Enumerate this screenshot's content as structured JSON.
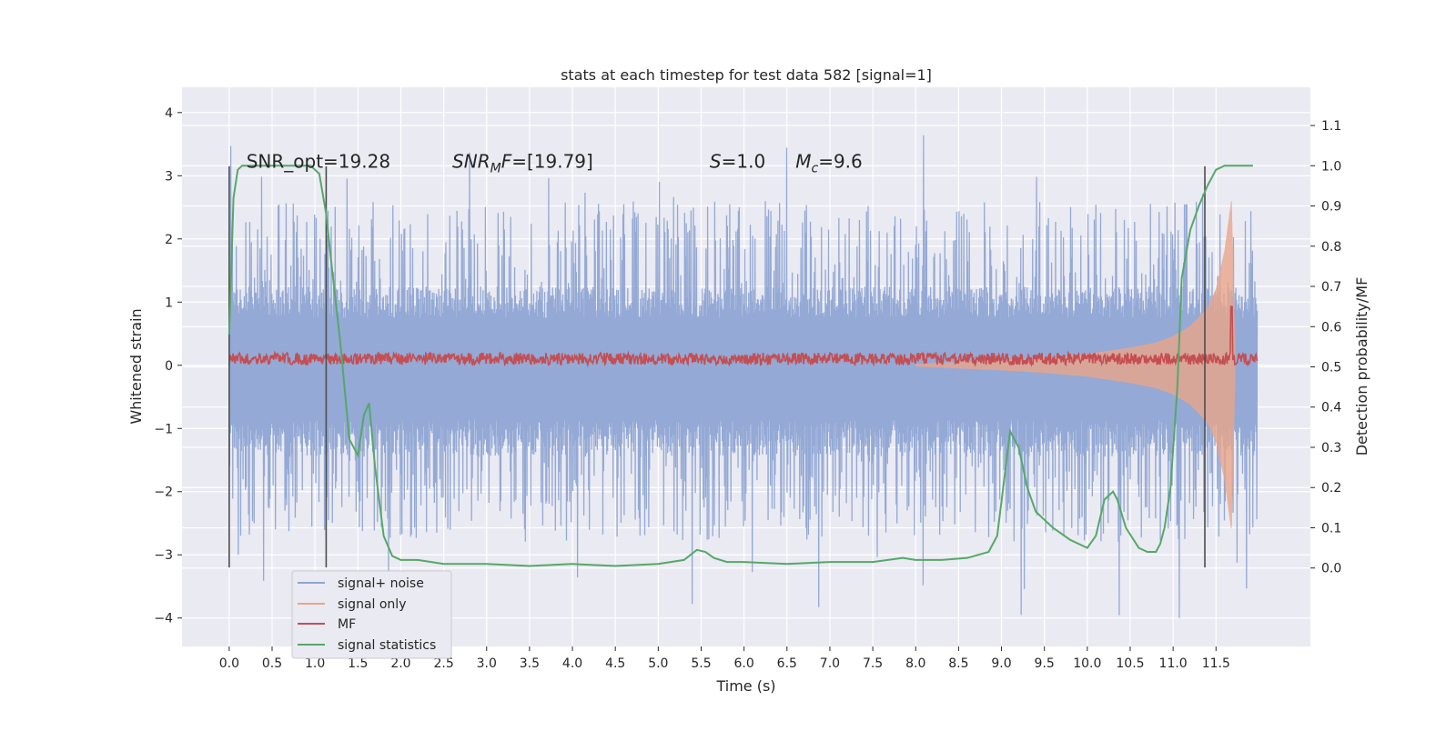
{
  "chart_data": {
    "type": "line",
    "title": "stats at each timestep for test data 582 [signal=1]",
    "xlabel": "Time (s)",
    "ylabel": "Whitened strain",
    "y2label": "Detection probability/MF",
    "xlim": [
      -0.55,
      12.6
    ],
    "ylim": [
      -4.45,
      4.4
    ],
    "y2lim": [
      -0.195,
      1.195
    ],
    "x_ticks": [
      0.0,
      0.5,
      1.0,
      1.5,
      2.0,
      2.5,
      3.0,
      3.5,
      4.0,
      4.5,
      5.0,
      5.5,
      6.0,
      6.5,
      7.0,
      7.5,
      8.0,
      8.5,
      9.0,
      9.5,
      10.0,
      10.5,
      11.0,
      11.5
    ],
    "x_tick_labels": [
      "0.0",
      "0.5",
      "1.0",
      "1.5",
      "2.0",
      "2.5",
      "3.0",
      "3.5",
      "4.0",
      "4.5",
      "5.0",
      "5.5",
      "6.0",
      "6.5",
      "7.0",
      "7.5",
      "8.0",
      "8.5",
      "9.0",
      "9.5",
      "10.0",
      "10.5",
      "11.0",
      "11.5"
    ],
    "y_ticks": [
      -4,
      -3,
      -2,
      -1,
      0,
      1,
      2,
      3,
      4
    ],
    "y_tick_labels": [
      "−4",
      "−3",
      "−2",
      "−1",
      "0",
      "1",
      "2",
      "3",
      "4"
    ],
    "y2_ticks": [
      0.0,
      0.1,
      0.2,
      0.3,
      0.4,
      0.5,
      0.6,
      0.7,
      0.8,
      0.9,
      1.0,
      1.1
    ],
    "y2_tick_labels": [
      "0.0",
      "0.1",
      "0.2",
      "0.3",
      "0.4",
      "0.5",
      "0.6",
      "0.7",
      "0.8",
      "0.9",
      "1.0",
      "1.1"
    ],
    "grid": true,
    "legend_position": "lower-left",
    "annotations": [
      {
        "parts": [
          {
            "t": "SNR_opt=19.28",
            "i": false
          }
        ],
        "x": 0.2,
        "y": 3.1
      },
      {
        "parts": [
          {
            "t": "SNR",
            "i": true
          },
          {
            "t": "M",
            "i": true,
            "sub": true
          },
          {
            "t": "F",
            "i": true
          },
          {
            "t": "=[19.79]",
            "i": false
          }
        ],
        "x": 2.6,
        "y": 3.1
      },
      {
        "parts": [
          {
            "t": "S",
            "i": true
          },
          {
            "t": "=1.0",
            "i": false
          }
        ],
        "x": 5.6,
        "y": 3.1
      },
      {
        "parts": [
          {
            "t": "M",
            "i": true
          },
          {
            "t": "c",
            "i": true,
            "sub": true
          },
          {
            "t": "=9.6",
            "i": false
          }
        ],
        "x": 6.6,
        "y": 3.1
      }
    ],
    "vertical_lines": [
      0.0,
      1.13,
      11.37
    ],
    "vertical_line_range": [
      -3.2,
      3.15
    ],
    "noise_envelope": {
      "t": [
        0.0,
        11.98
      ],
      "upper_core": 1.25,
      "lower_core": -1.45,
      "peak_max": 4.0,
      "peak_min": -4.1
    },
    "signal_envelope": {
      "t": [
        8.0,
        8.5,
        9.0,
        9.5,
        10.0,
        10.5,
        10.8,
        11.0,
        11.2,
        11.4,
        11.5,
        11.6,
        11.68,
        11.72
      ],
      "amp": [
        0.02,
        0.05,
        0.08,
        0.12,
        0.18,
        0.28,
        0.36,
        0.46,
        0.62,
        0.9,
        1.2,
        1.8,
        2.6,
        0.3
      ]
    },
    "mf": {
      "baseline": 0.52,
      "peak_t": 11.68,
      "peak_value": 0.65
    },
    "series": [
      {
        "name": "signal+ noise",
        "color": "#8fa5d3"
      },
      {
        "name": "signal only",
        "color": "#e9a58a"
      },
      {
        "name": "MF",
        "color": "#c44e52"
      },
      {
        "name": "signal statistics",
        "color": "#55a868",
        "t": [
          0.0,
          0.05,
          0.1,
          0.15,
          0.25,
          0.4,
          0.6,
          0.8,
          0.95,
          1.05,
          1.13,
          1.2,
          1.3,
          1.4,
          1.5,
          1.57,
          1.63,
          1.7,
          1.8,
          1.9,
          2.0,
          2.2,
          2.5,
          3.0,
          3.5,
          4.0,
          4.5,
          5.0,
          5.3,
          5.45,
          5.55,
          5.65,
          5.8,
          6.0,
          6.5,
          7.0,
          7.5,
          7.85,
          8.0,
          8.3,
          8.6,
          8.85,
          8.95,
          9.02,
          9.1,
          9.2,
          9.3,
          9.4,
          9.6,
          9.8,
          10.0,
          10.1,
          10.2,
          10.3,
          10.35,
          10.45,
          10.6,
          10.7,
          10.8,
          10.85,
          10.9,
          10.97,
          11.05,
          11.1,
          11.2,
          11.3,
          11.4,
          11.5,
          11.6,
          11.7,
          11.8,
          11.93
        ],
        "values": [
          0.58,
          0.92,
          0.99,
          1.0,
          1.0,
          1.0,
          1.0,
          1.0,
          1.0,
          0.98,
          0.88,
          0.74,
          0.55,
          0.32,
          0.28,
          0.38,
          0.41,
          0.25,
          0.08,
          0.03,
          0.02,
          0.02,
          0.01,
          0.01,
          0.005,
          0.01,
          0.005,
          0.01,
          0.02,
          0.045,
          0.04,
          0.025,
          0.015,
          0.015,
          0.01,
          0.015,
          0.015,
          0.025,
          0.02,
          0.02,
          0.025,
          0.04,
          0.08,
          0.2,
          0.34,
          0.3,
          0.2,
          0.14,
          0.1,
          0.07,
          0.05,
          0.08,
          0.17,
          0.19,
          0.17,
          0.1,
          0.05,
          0.04,
          0.04,
          0.06,
          0.1,
          0.2,
          0.45,
          0.72,
          0.84,
          0.9,
          0.95,
          0.99,
          1.0,
          1.0,
          1.0,
          1.0
        ]
      }
    ]
  }
}
